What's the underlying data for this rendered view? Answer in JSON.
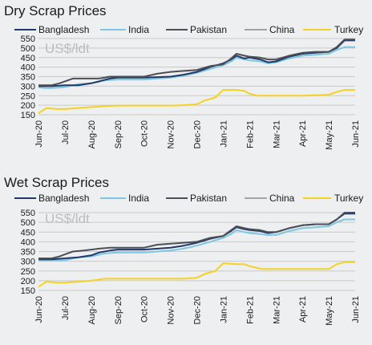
{
  "chart_data": [
    {
      "type": "line",
      "title": "Dry Scrap Prices",
      "unit_label": "US$/ldt",
      "ylim": [
        150,
        550
      ],
      "yticks": [
        150,
        200,
        250,
        300,
        350,
        400,
        450,
        500,
        550
      ],
      "categories": [
        "Jun-20",
        "Jul-20",
        "Aug-20",
        "Sep-20",
        "Oct-20",
        "Nov-20",
        "Dec-20",
        "Jan-21",
        "Feb-21",
        "Mar-21",
        "Apr-21",
        "May-21",
        "Jun-21"
      ],
      "grid": true,
      "legend_position": "top",
      "series": [
        {
          "name": "Bangladesh",
          "color": "#1f3a68",
          "points": [
            [
              0,
              300
            ],
            [
              0.25,
              300
            ],
            [
              0.5,
              300
            ],
            [
              1,
              305
            ],
            [
              1.5,
              305
            ],
            [
              2,
              315
            ],
            [
              2.3,
              325
            ],
            [
              2.7,
              340
            ],
            [
              3,
              345
            ],
            [
              4,
              345
            ],
            [
              5,
              350
            ],
            [
              5.5,
              360
            ],
            [
              6,
              375
            ],
            [
              6.5,
              400
            ],
            [
              7,
              420
            ],
            [
              7.3,
              440
            ],
            [
              7.5,
              460
            ],
            [
              7.8,
              445
            ],
            [
              8,
              450
            ],
            [
              8.4,
              440
            ],
            [
              8.7,
              425
            ],
            [
              9,
              430
            ],
            [
              9.5,
              455
            ],
            [
              10,
              470
            ],
            [
              10.5,
              475
            ],
            [
              11,
              480
            ],
            [
              11.3,
              500
            ],
            [
              11.6,
              540
            ],
            [
              12,
              540
            ]
          ]
        },
        {
          "name": "India",
          "color": "#7fc6e2",
          "points": [
            [
              0,
              295
            ],
            [
              0.25,
              290
            ],
            [
              0.5,
              290
            ],
            [
              1,
              295
            ],
            [
              1.5,
              310
            ],
            [
              2,
              315
            ],
            [
              2.5,
              330
            ],
            [
              3,
              335
            ],
            [
              4,
              335
            ],
            [
              5,
              345
            ],
            [
              5.5,
              355
            ],
            [
              6,
              370
            ],
            [
              6.5,
              390
            ],
            [
              7,
              410
            ],
            [
              7.3,
              430
            ],
            [
              7.5,
              450
            ],
            [
              7.8,
              440
            ],
            [
              8,
              435
            ],
            [
              8.4,
              430
            ],
            [
              8.7,
              420
            ],
            [
              9,
              425
            ],
            [
              9.5,
              445
            ],
            [
              10,
              460
            ],
            [
              10.5,
              465
            ],
            [
              11,
              470
            ],
            [
              11.3,
              490
            ],
            [
              11.6,
              505
            ],
            [
              12,
              505
            ]
          ]
        },
        {
          "name": "Pakistan",
          "color": "#4d4f57",
          "points": [
            [
              0,
              305
            ],
            [
              0.25,
              305
            ],
            [
              0.5,
              305
            ],
            [
              0.8,
              315
            ],
            [
              1,
              325
            ],
            [
              1.3,
              340
            ],
            [
              1.7,
              340
            ],
            [
              2,
              340
            ],
            [
              2.3,
              340
            ],
            [
              2.7,
              350
            ],
            [
              3,
              350
            ],
            [
              4,
              350
            ],
            [
              4.5,
              365
            ],
            [
              5,
              375
            ],
            [
              5.5,
              380
            ],
            [
              6,
              385
            ],
            [
              6.5,
              405
            ],
            [
              7,
              415
            ],
            [
              7.3,
              445
            ],
            [
              7.5,
              470
            ],
            [
              7.8,
              460
            ],
            [
              8,
              455
            ],
            [
              8.4,
              450
            ],
            [
              8.7,
              440
            ],
            [
              9,
              440
            ],
            [
              9.5,
              460
            ],
            [
              10,
              475
            ],
            [
              10.5,
              480
            ],
            [
              11,
              480
            ],
            [
              11.3,
              505
            ],
            [
              11.6,
              545
            ],
            [
              12,
              545
            ]
          ]
        },
        {
          "name": "China",
          "color": "#a3a4a6",
          "points": []
        },
        {
          "name": "Turkey",
          "color": "#f4d225",
          "points": [
            [
              0,
              158
            ],
            [
              0.3,
              185
            ],
            [
              0.7,
              180
            ],
            [
              1,
              180
            ],
            [
              1.5,
              185
            ],
            [
              2,
              190
            ],
            [
              2.5,
              195
            ],
            [
              3,
              198
            ],
            [
              4,
              198
            ],
            [
              5,
              198
            ],
            [
              5.5,
              200
            ],
            [
              6,
              205
            ],
            [
              6.3,
              225
            ],
            [
              6.7,
              240
            ],
            [
              7,
              280
            ],
            [
              7.5,
              280
            ],
            [
              7.8,
              275
            ],
            [
              8,
              260
            ],
            [
              8.3,
              250
            ],
            [
              8.5,
              250
            ],
            [
              9,
              250
            ],
            [
              10,
              250
            ],
            [
              11,
              255
            ],
            [
              11.3,
              270
            ],
            [
              11.6,
              280
            ],
            [
              12,
              280
            ]
          ]
        }
      ]
    },
    {
      "type": "line",
      "title": "Wet Scrap Prices",
      "unit_label": "US$/ldt",
      "ylim": [
        150,
        550
      ],
      "yticks": [
        150,
        200,
        250,
        300,
        350,
        400,
        450,
        500,
        550
      ],
      "categories": [
        "Jun-20",
        "Jul-20",
        "Aug-20",
        "Sep-20",
        "Oct-20",
        "Nov-20",
        "Dec-20",
        "Jan-21",
        "Feb-21",
        "Mar-21",
        "Apr-21",
        "May-21",
        "Jun-21"
      ],
      "grid": true,
      "legend_position": "top",
      "series": [
        {
          "name": "Bangladesh",
          "color": "#1f3a68",
          "points": [
            [
              0,
              310
            ],
            [
              0.5,
              310
            ],
            [
              1,
              315
            ],
            [
              1.5,
              320
            ],
            [
              2,
              330
            ],
            [
              2.3,
              345
            ],
            [
              2.7,
              355
            ],
            [
              3,
              360
            ],
            [
              4,
              360
            ],
            [
              5,
              370
            ],
            [
              5.5,
              380
            ],
            [
              6,
              395
            ],
            [
              6.5,
              415
            ],
            [
              7,
              430
            ],
            [
              7.3,
              455
            ],
            [
              7.5,
              475
            ],
            [
              7.8,
              465
            ],
            [
              8,
              460
            ],
            [
              8.4,
              455
            ],
            [
              8.7,
              445
            ],
            [
              9,
              450
            ],
            [
              9.5,
              470
            ],
            [
              10,
              485
            ],
            [
              10.5,
              490
            ],
            [
              11,
              490
            ],
            [
              11.3,
              515
            ],
            [
              11.6,
              545
            ],
            [
              12,
              545
            ]
          ]
        },
        {
          "name": "India",
          "color": "#7fc6e2",
          "points": [
            [
              0,
              305
            ],
            [
              0.5,
              305
            ],
            [
              1,
              305
            ],
            [
              1.5,
              320
            ],
            [
              2,
              325
            ],
            [
              2.5,
              340
            ],
            [
              3,
              345
            ],
            [
              4,
              345
            ],
            [
              5,
              355
            ],
            [
              5.5,
              365
            ],
            [
              6,
              380
            ],
            [
              6.5,
              400
            ],
            [
              7,
              420
            ],
            [
              7.3,
              440
            ],
            [
              7.5,
              460
            ],
            [
              7.8,
              450
            ],
            [
              8,
              445
            ],
            [
              8.4,
              440
            ],
            [
              8.7,
              435
            ],
            [
              9,
              435
            ],
            [
              9.5,
              455
            ],
            [
              10,
              470
            ],
            [
              10.5,
              475
            ],
            [
              11,
              480
            ],
            [
              11.3,
              500
            ],
            [
              11.6,
              515
            ],
            [
              12,
              515
            ]
          ]
        },
        {
          "name": "Pakistan",
          "color": "#4d4f57",
          "points": [
            [
              0,
              315
            ],
            [
              0.5,
              315
            ],
            [
              0.8,
              325
            ],
            [
              1,
              335
            ],
            [
              1.3,
              350
            ],
            [
              1.7,
              355
            ],
            [
              2,
              360
            ],
            [
              2.3,
              365
            ],
            [
              2.7,
              370
            ],
            [
              3,
              370
            ],
            [
              4,
              370
            ],
            [
              4.5,
              385
            ],
            [
              5,
              390
            ],
            [
              5.5,
              395
            ],
            [
              6,
              400
            ],
            [
              6.5,
              420
            ],
            [
              7,
              430
            ],
            [
              7.3,
              460
            ],
            [
              7.5,
              480
            ],
            [
              7.8,
              470
            ],
            [
              8,
              465
            ],
            [
              8.4,
              460
            ],
            [
              8.7,
              450
            ],
            [
              9,
              450
            ],
            [
              9.5,
              470
            ],
            [
              10,
              485
            ],
            [
              10.5,
              490
            ],
            [
              11,
              490
            ],
            [
              11.3,
              515
            ],
            [
              11.6,
              550
            ],
            [
              12,
              550
            ]
          ]
        },
        {
          "name": "China",
          "color": "#a3a4a6",
          "points": []
        },
        {
          "name": "Turkey",
          "color": "#f4d225",
          "points": [
            [
              0,
              168
            ],
            [
              0.3,
              195
            ],
            [
              0.7,
              190
            ],
            [
              1,
              190
            ],
            [
              1.5,
              195
            ],
            [
              2,
              200
            ],
            [
              2.5,
              210
            ],
            [
              3,
              210
            ],
            [
              4,
              210
            ],
            [
              5,
              210
            ],
            [
              5.5,
              210
            ],
            [
              6,
              215
            ],
            [
              6.3,
              235
            ],
            [
              6.7,
              250
            ],
            [
              7,
              290
            ],
            [
              7.5,
              285
            ],
            [
              7.8,
              285
            ],
            [
              8,
              275
            ],
            [
              8.3,
              265
            ],
            [
              8.5,
              260
            ],
            [
              9,
              260
            ],
            [
              10,
              260
            ],
            [
              11,
              260
            ],
            [
              11.3,
              285
            ],
            [
              11.6,
              295
            ],
            [
              12,
              295
            ]
          ]
        }
      ]
    }
  ]
}
